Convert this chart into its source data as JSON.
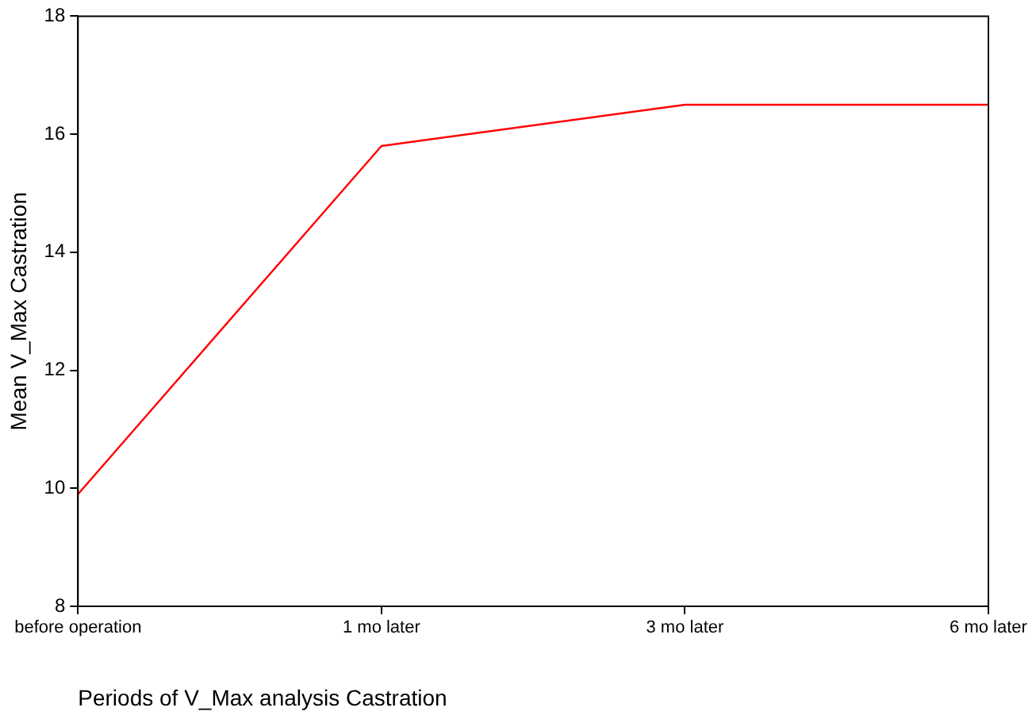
{
  "chart_data": {
    "type": "line",
    "xlabel": "Periods of V_Max analysis Castration",
    "ylabel": "Mean V_Max Castration",
    "categories": [
      "before operation",
      "1 mo later",
      "3 mo later",
      "6 mo later"
    ],
    "series": [
      {
        "color": "#ff0000",
        "values": [
          9.9,
          15.8,
          16.5,
          16.5
        ]
      }
    ],
    "ylim": [
      8,
      18
    ],
    "yticks": [
      8,
      10,
      12,
      14,
      16,
      18
    ],
    "grid": false,
    "legend": false,
    "marker": "none",
    "line_style": "solid"
  }
}
